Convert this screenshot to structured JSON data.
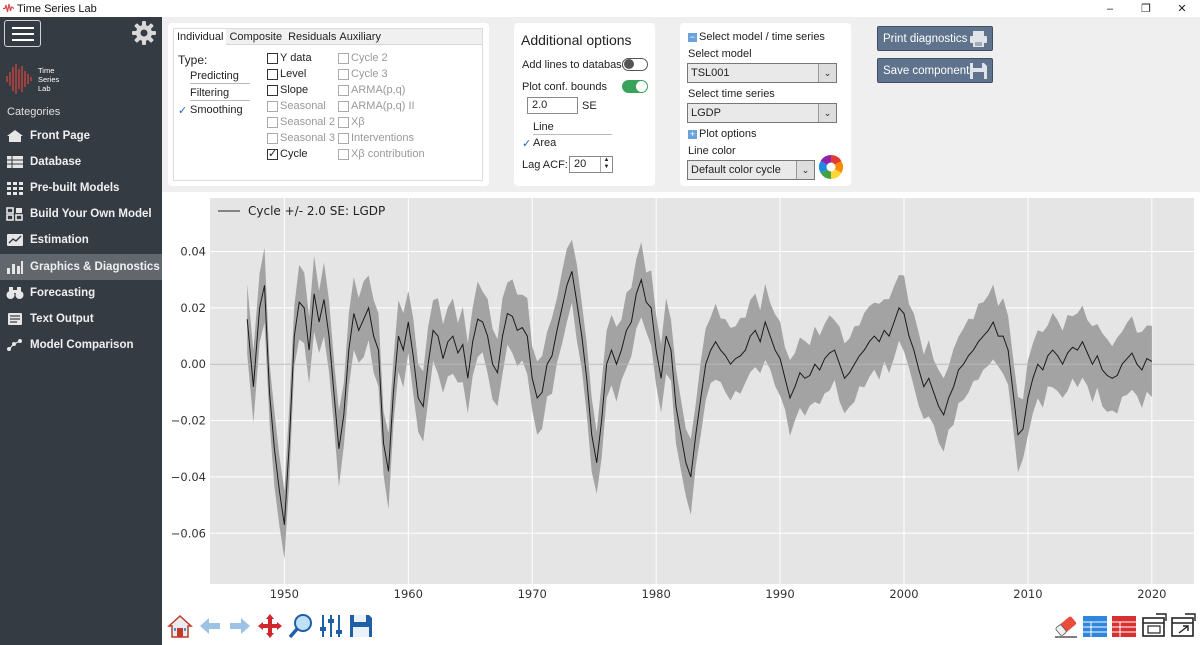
{
  "window": {
    "title": "Time Series Lab",
    "controls": [
      "–",
      "❐",
      "✕"
    ]
  },
  "sidebar": {
    "logo_text": [
      "Time",
      "Series",
      "Lab"
    ],
    "categories_label": "Categories",
    "items": [
      {
        "label": "Front Page",
        "icon": "home-icon"
      },
      {
        "label": "Database",
        "icon": "database-icon"
      },
      {
        "label": "Pre-built Models",
        "icon": "grid-icon"
      },
      {
        "label": "Build Your Own Model",
        "icon": "blocks-icon"
      },
      {
        "label": "Estimation",
        "icon": "estimation-icon"
      },
      {
        "label": "Graphics & Diagnostics",
        "icon": "chart-icon",
        "active": true
      },
      {
        "label": "Forecasting",
        "icon": "binoculars-icon"
      },
      {
        "label": "Text Output",
        "icon": "text-icon"
      },
      {
        "label": "Model Comparison",
        "icon": "compare-icon"
      }
    ]
  },
  "components_panel": {
    "tabs": [
      "Individual",
      "Composite",
      "Residuals",
      "Auxiliary"
    ],
    "type_label": "Type:",
    "types": [
      {
        "label": "Predicting",
        "selected": false
      },
      {
        "label": "Filtering",
        "selected": false
      },
      {
        "label": "Smoothing",
        "selected": true
      }
    ],
    "checks_col1": [
      {
        "label": "Y data",
        "checked": false,
        "enabled": true
      },
      {
        "label": "Level",
        "checked": false,
        "enabled": true
      },
      {
        "label": "Slope",
        "checked": false,
        "enabled": true
      },
      {
        "label": "Seasonal",
        "checked": false,
        "enabled": false
      },
      {
        "label": "Seasonal 2",
        "checked": false,
        "enabled": false
      },
      {
        "label": "Seasonal 3",
        "checked": false,
        "enabled": false
      },
      {
        "label": "Cycle",
        "checked": true,
        "enabled": true
      }
    ],
    "checks_col2": [
      {
        "label": "Cycle 2",
        "checked": false,
        "enabled": false
      },
      {
        "label": "Cycle 3",
        "checked": false,
        "enabled": false
      },
      {
        "label": "ARMA(p,q)",
        "checked": false,
        "enabled": false
      },
      {
        "label": "ARMA(p,q) II",
        "checked": false,
        "enabled": false
      },
      {
        "label": "Xβ",
        "checked": false,
        "enabled": false
      },
      {
        "label": "Interventions",
        "checked": false,
        "enabled": false
      },
      {
        "label": "Xβ contribution",
        "checked": false,
        "enabled": false
      }
    ]
  },
  "options_panel": {
    "title": "Additional options",
    "add_lines_label": "Add lines to database",
    "add_lines_on": false,
    "plot_bounds_label": "Plot conf. bounds",
    "plot_bounds_on": true,
    "se_value": "2.0",
    "se_unit": "SE",
    "line_label": "Line",
    "area_label": "Area",
    "area_selected": true,
    "lag_label": "Lag ACF:",
    "lag_value": "20"
  },
  "model_panel": {
    "header": "Select model / time series",
    "select_model_label": "Select model",
    "model_value": "TSL001",
    "select_series_label": "Select time series",
    "series_value": "LGDP",
    "plot_options_label": "Plot options",
    "line_color_label": "Line color",
    "line_color_value": "Default color cycle"
  },
  "actions": {
    "print_label": "Print diagnostics",
    "save_label": "Save components"
  },
  "colors": {
    "sidebar_bg": "#353b43",
    "sidebar_active": "#62676e",
    "plot_bg": "#e5e5e5",
    "band": "#a3a3a3",
    "line": "#1a1a1a",
    "toggle_on": "#3aa35b",
    "button_bg": "#5f738d"
  },
  "chart_data": {
    "type": "area",
    "legend": "Cycle +/- 2.0 SE: LGDP",
    "legend_position": "top-left",
    "x_ticks": [
      1950,
      1960,
      1970,
      1980,
      1990,
      2000,
      2010,
      2020
    ],
    "y_ticks": [
      "0.04",
      "0.02",
      "0.00",
      "−0.02",
      "−0.04",
      "−0.06"
    ],
    "xlim": [
      1944,
      2023.4
    ],
    "ylim": [
      -0.078,
      0.059
    ],
    "grid": true,
    "se_multiplier": 2.0,
    "series": [
      {
        "name": "Cycle",
        "points": [
          [
            1947.0,
            0.016
          ],
          [
            1947.5,
            -0.008
          ],
          [
            1948.0,
            0.02
          ],
          [
            1948.4,
            0.028
          ],
          [
            1948.8,
            -0.01
          ],
          [
            1949.2,
            -0.03
          ],
          [
            1949.6,
            -0.045
          ],
          [
            1950.0,
            -0.057
          ],
          [
            1950.4,
            -0.028
          ],
          [
            1950.8,
            0.01
          ],
          [
            1951.2,
            0.022
          ],
          [
            1951.6,
            0.02
          ],
          [
            1952.0,
            0.005
          ],
          [
            1952.4,
            0.025
          ],
          [
            1952.8,
            0.015
          ],
          [
            1953.2,
            0.023
          ],
          [
            1953.6,
            0.01
          ],
          [
            1954.0,
            -0.01
          ],
          [
            1954.4,
            -0.03
          ],
          [
            1954.8,
            -0.018
          ],
          [
            1955.2,
            0.005
          ],
          [
            1955.6,
            0.018
          ],
          [
            1956.0,
            0.012
          ],
          [
            1956.4,
            0.016
          ],
          [
            1956.8,
            0.02
          ],
          [
            1957.2,
            0.01
          ],
          [
            1957.6,
            0.005
          ],
          [
            1958.0,
            -0.028
          ],
          [
            1958.4,
            -0.038
          ],
          [
            1958.8,
            -0.01
          ],
          [
            1959.2,
            0.01
          ],
          [
            1959.6,
            0.005
          ],
          [
            1960.0,
            0.015
          ],
          [
            1960.4,
            0.003
          ],
          [
            1960.8,
            -0.012
          ],
          [
            1961.2,
            -0.015
          ],
          [
            1961.6,
            0.0
          ],
          [
            1962.0,
            0.012
          ],
          [
            1962.4,
            0.01
          ],
          [
            1962.8,
            0.002
          ],
          [
            1963.2,
            0.008
          ],
          [
            1963.6,
            0.01
          ],
          [
            1964.0,
            0.004
          ],
          [
            1964.4,
            0.007
          ],
          [
            1964.8,
            -0.005
          ],
          [
            1965.2,
            0.008
          ],
          [
            1965.6,
            0.016
          ],
          [
            1966.0,
            0.015
          ],
          [
            1966.4,
            0.01
          ],
          [
            1966.8,
            0.0
          ],
          [
            1967.2,
            -0.003
          ],
          [
            1967.6,
            0.01
          ],
          [
            1968.0,
            0.018
          ],
          [
            1968.4,
            0.017
          ],
          [
            1968.8,
            0.012
          ],
          [
            1969.2,
            0.013
          ],
          [
            1969.6,
            0.01
          ],
          [
            1970.0,
            -0.005
          ],
          [
            1970.4,
            -0.012
          ],
          [
            1970.8,
            -0.01
          ],
          [
            1971.2,
            0.0
          ],
          [
            1971.6,
            0.003
          ],
          [
            1972.0,
            0.012
          ],
          [
            1972.4,
            0.02
          ],
          [
            1972.8,
            0.028
          ],
          [
            1973.2,
            0.033
          ],
          [
            1973.6,
            0.022
          ],
          [
            1974.0,
            0.01
          ],
          [
            1974.4,
            -0.005
          ],
          [
            1974.8,
            -0.025
          ],
          [
            1975.2,
            -0.035
          ],
          [
            1975.6,
            -0.02
          ],
          [
            1976.0,
            0.0
          ],
          [
            1976.4,
            0.005
          ],
          [
            1976.8,
            0.0
          ],
          [
            1977.2,
            0.005
          ],
          [
            1977.6,
            0.012
          ],
          [
            1978.0,
            0.015
          ],
          [
            1978.4,
            0.025
          ],
          [
            1978.8,
            0.03
          ],
          [
            1979.2,
            0.022
          ],
          [
            1979.6,
            0.02
          ],
          [
            1980.0,
            0.005
          ],
          [
            1980.4,
            -0.005
          ],
          [
            1980.8,
            0.01
          ],
          [
            1981.2,
            0.005
          ],
          [
            1981.6,
            -0.015
          ],
          [
            1982.0,
            -0.025
          ],
          [
            1982.4,
            -0.035
          ],
          [
            1982.8,
            -0.04
          ],
          [
            1983.2,
            -0.025
          ],
          [
            1983.6,
            -0.012
          ],
          [
            1984.0,
            0.0
          ],
          [
            1984.4,
            0.005
          ],
          [
            1984.8,
            0.008
          ],
          [
            1985.2,
            0.005
          ],
          [
            1985.6,
            0.003
          ],
          [
            1986.0,
            0.0
          ],
          [
            1986.4,
            0.002
          ],
          [
            1986.8,
            0.003
          ],
          [
            1987.2,
            0.005
          ],
          [
            1987.6,
            0.01
          ],
          [
            1988.0,
            0.012
          ],
          [
            1988.4,
            0.008
          ],
          [
            1988.8,
            0.015
          ],
          [
            1989.2,
            0.01
          ],
          [
            1989.6,
            0.005
          ],
          [
            1990.0,
            0.002
          ],
          [
            1990.4,
            -0.005
          ],
          [
            1990.8,
            -0.012
          ],
          [
            1991.2,
            -0.008
          ],
          [
            1991.6,
            -0.003
          ],
          [
            1992.0,
            -0.005
          ],
          [
            1992.4,
            -0.004
          ],
          [
            1992.8,
            0.0
          ],
          [
            1993.2,
            -0.002
          ],
          [
            1993.6,
            0.002
          ],
          [
            1994.0,
            0.004
          ],
          [
            1994.4,
            0.005
          ],
          [
            1994.8,
            0.0
          ],
          [
            1995.2,
            -0.005
          ],
          [
            1995.6,
            -0.003
          ],
          [
            1996.0,
            0.0
          ],
          [
            1996.4,
            0.003
          ],
          [
            1996.8,
            0.005
          ],
          [
            1997.2,
            0.008
          ],
          [
            1997.6,
            0.01
          ],
          [
            1998.0,
            0.008
          ],
          [
            1998.4,
            0.012
          ],
          [
            1998.8,
            0.01
          ],
          [
            1999.2,
            0.015
          ],
          [
            1999.6,
            0.02
          ],
          [
            2000.0,
            0.018
          ],
          [
            2000.4,
            0.01
          ],
          [
            2000.8,
            0.005
          ],
          [
            2001.2,
            -0.002
          ],
          [
            2001.6,
            -0.008
          ],
          [
            2002.0,
            -0.005
          ],
          [
            2002.4,
            -0.01
          ],
          [
            2002.8,
            -0.015
          ],
          [
            2003.2,
            -0.018
          ],
          [
            2003.6,
            -0.012
          ],
          [
            2004.0,
            -0.008
          ],
          [
            2004.4,
            -0.002
          ],
          [
            2004.8,
            0.0
          ],
          [
            2005.2,
            0.003
          ],
          [
            2005.6,
            0.005
          ],
          [
            2006.0,
            0.008
          ],
          [
            2006.4,
            0.01
          ],
          [
            2006.8,
            0.012
          ],
          [
            2007.2,
            0.015
          ],
          [
            2007.6,
            0.01
          ],
          [
            2008.0,
            0.01
          ],
          [
            2008.4,
            0.005
          ],
          [
            2008.8,
            -0.01
          ],
          [
            2009.2,
            -0.025
          ],
          [
            2009.6,
            -0.023
          ],
          [
            2010.0,
            -0.012
          ],
          [
            2010.4,
            -0.005
          ],
          [
            2010.8,
            0.0
          ],
          [
            2011.2,
            -0.002
          ],
          [
            2011.6,
            0.003
          ],
          [
            2012.0,
            0.005
          ],
          [
            2012.4,
            0.003
          ],
          [
            2012.8,
            0.0
          ],
          [
            2013.2,
            0.004
          ],
          [
            2013.6,
            0.006
          ],
          [
            2014.0,
            0.005
          ],
          [
            2014.4,
            0.008
          ],
          [
            2014.8,
            0.004
          ],
          [
            2015.2,
            0.0
          ],
          [
            2015.6,
            0.003
          ],
          [
            2016.0,
            -0.002
          ],
          [
            2016.4,
            -0.004
          ],
          [
            2016.8,
            -0.005
          ],
          [
            2017.2,
            -0.004
          ],
          [
            2017.6,
            0.0
          ],
          [
            2018.0,
            0.002
          ],
          [
            2018.4,
            0.004
          ],
          [
            2018.8,
            0.0
          ],
          [
            2019.2,
            -0.002
          ],
          [
            2019.6,
            0.002
          ],
          [
            2020.0,
            0.001
          ]
        ]
      }
    ]
  }
}
